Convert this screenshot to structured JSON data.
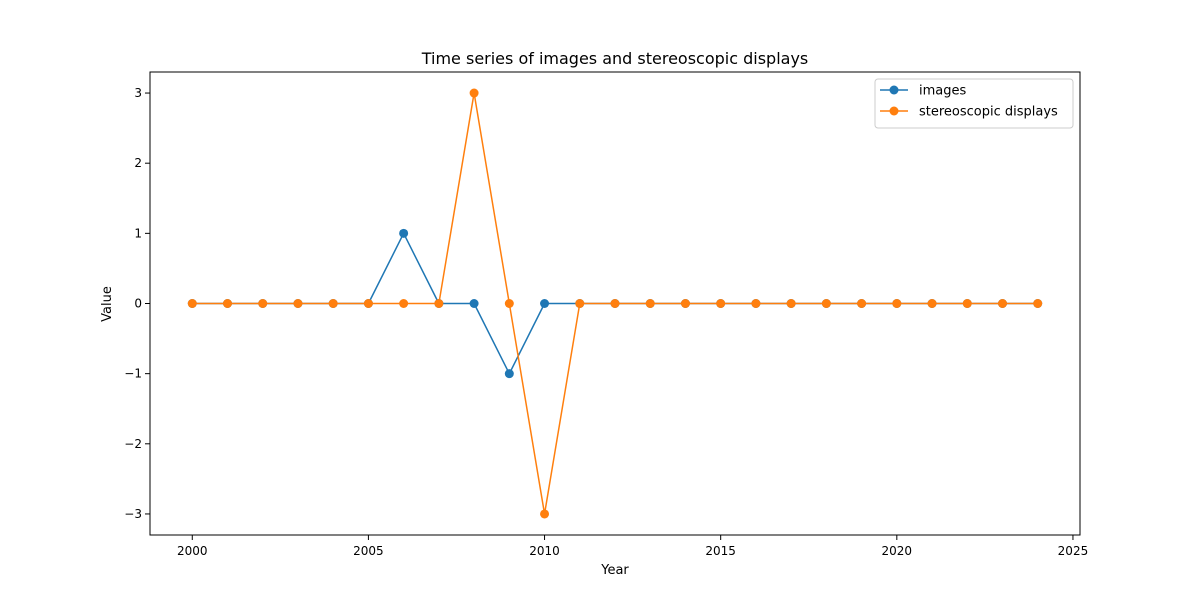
{
  "chart_data": {
    "type": "line",
    "title": "Time series of images and stereoscopic displays",
    "xlabel": "Year",
    "ylabel": "Value",
    "xlim": [
      1998.8,
      2025.2
    ],
    "ylim": [
      -3.3,
      3.3
    ],
    "xticks": [
      2000,
      2005,
      2010,
      2015,
      2020,
      2025
    ],
    "yticks": [
      -3,
      -2,
      -1,
      0,
      1,
      2,
      3
    ],
    "x": [
      2000,
      2001,
      2002,
      2003,
      2004,
      2005,
      2006,
      2007,
      2008,
      2009,
      2010,
      2011,
      2012,
      2013,
      2014,
      2015,
      2016,
      2017,
      2018,
      2019,
      2020,
      2021,
      2022,
      2023,
      2024
    ],
    "series": [
      {
        "name": "images",
        "color": "#1f77b4",
        "values": [
          0,
          0,
          0,
          0,
          0,
          0,
          1,
          0,
          0,
          -1,
          0,
          0,
          0,
          0,
          0,
          0,
          0,
          0,
          0,
          0,
          0,
          0,
          0,
          0,
          0
        ]
      },
      {
        "name": "stereoscopic displays",
        "color": "#ff7f0e",
        "values": [
          0,
          0,
          0,
          0,
          0,
          0,
          0,
          0,
          3,
          0,
          -3,
          0,
          0,
          0,
          0,
          0,
          0,
          0,
          0,
          0,
          0,
          0,
          0,
          0,
          0
        ]
      }
    ],
    "grid": false,
    "legend_position": "top-right"
  }
}
